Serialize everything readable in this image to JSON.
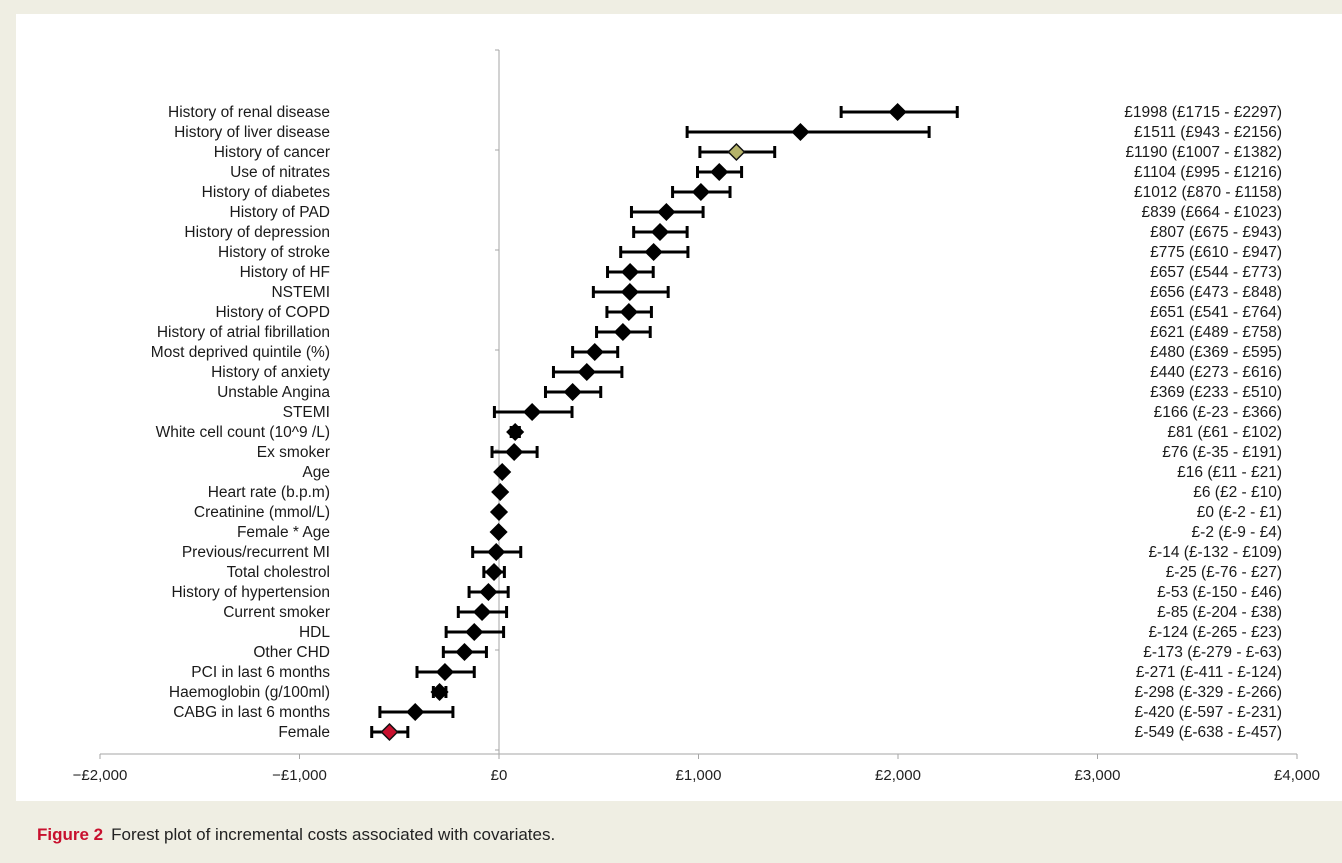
{
  "figure": {
    "label": "Figure 2",
    "caption": "Forest plot of incremental costs associated with covariates."
  },
  "colors": {
    "marker": "#000000",
    "highlight_fill": "#b5b36a",
    "female_fill": "#c8102e",
    "caption_label": "#c8102e",
    "background": "#efeee3"
  },
  "chart_data": {
    "type": "forest",
    "xlim": [
      -2000,
      4000
    ],
    "xticks": [
      -2000,
      -1000,
      0,
      1000,
      2000,
      3000,
      4000
    ],
    "xtick_labels": [
      "−£2,000",
      "−£1,000",
      "£0",
      "£1,000",
      "£2,000",
      "£3,000",
      "£4,000"
    ],
    "grid": false,
    "rows": [
      {
        "label": "History of renal disease",
        "est": 1998,
        "lo": 1715,
        "hi": 2297,
        "text": "£1998 (£1715 - £2297)"
      },
      {
        "label": "History of liver disease",
        "est": 1511,
        "lo": 943,
        "hi": 2156,
        "text": "£1511 (£943 - £2156)"
      },
      {
        "label": "History of cancer",
        "est": 1190,
        "lo": 1007,
        "hi": 1382,
        "text": "£1190 (£1007 - £1382)",
        "marker": "highlight"
      },
      {
        "label": "Use of nitrates",
        "est": 1104,
        "lo": 995,
        "hi": 1216,
        "text": "£1104 (£995 - £1216)"
      },
      {
        "label": "History of diabetes",
        "est": 1012,
        "lo": 870,
        "hi": 1158,
        "text": "£1012 (£870 - £1158)"
      },
      {
        "label": "History of PAD",
        "est": 839,
        "lo": 664,
        "hi": 1023,
        "text": "£839 (£664 - £1023)"
      },
      {
        "label": "History of depression",
        "est": 807,
        "lo": 675,
        "hi": 943,
        "text": "£807 (£675 - £943)"
      },
      {
        "label": "History of stroke",
        "est": 775,
        "lo": 610,
        "hi": 947,
        "text": "£775 (£610 - £947)"
      },
      {
        "label": "History of HF",
        "est": 657,
        "lo": 544,
        "hi": 773,
        "text": "£657 (£544 - £773)"
      },
      {
        "label": "NSTEMI",
        "est": 656,
        "lo": 473,
        "hi": 848,
        "text": "£656 (£473 - £848)"
      },
      {
        "label": "History of COPD",
        "est": 651,
        "lo": 541,
        "hi": 764,
        "text": "£651 (£541 - £764)"
      },
      {
        "label": "History of atrial fibrillation",
        "est": 621,
        "lo": 489,
        "hi": 758,
        "text": "£621 (£489 - £758)"
      },
      {
        "label": "Most deprived quintile (%)",
        "est": 480,
        "lo": 369,
        "hi": 595,
        "text": "£480 (£369 - £595)"
      },
      {
        "label": "History of anxiety",
        "est": 440,
        "lo": 273,
        "hi": 616,
        "text": "£440 (£273 - £616)"
      },
      {
        "label": "Unstable Angina",
        "est": 369,
        "lo": 233,
        "hi": 510,
        "text": "£369 (£233 - £510)"
      },
      {
        "label": "STEMI",
        "est": 166,
        "lo": -23,
        "hi": 366,
        "text": "£166 (£-23 - £366)"
      },
      {
        "label": "White cell count (10^9 /L)",
        "est": 81,
        "lo": 61,
        "hi": 102,
        "text": "£81 (£61 - £102)"
      },
      {
        "label": "Ex smoker",
        "est": 76,
        "lo": -35,
        "hi": 191,
        "text": "£76 (£-35 - £191)"
      },
      {
        "label": "Age",
        "est": 16,
        "lo": 11,
        "hi": 21,
        "text": "£16 (£11 - £21)"
      },
      {
        "label": "Heart rate (b.p.m)",
        "est": 6,
        "lo": 2,
        "hi": 10,
        "text": "£6 (£2 - £10)"
      },
      {
        "label": "Creatinine (mmol/L)",
        "est": 0,
        "lo": -2,
        "hi": 1,
        "text": "£0 (£-2 - £1)"
      },
      {
        "label": "Female * Age",
        "est": -2,
        "lo": -9,
        "hi": 4,
        "text": "£-2 (£-9 - £4)"
      },
      {
        "label": "Previous/recurrent MI",
        "est": -14,
        "lo": -132,
        "hi": 109,
        "text": "£-14 (£-132 - £109)"
      },
      {
        "label": "Total cholestrol",
        "est": -25,
        "lo": -76,
        "hi": 27,
        "text": "£-25 (£-76 - £27)"
      },
      {
        "label": "History of hypertension",
        "est": -53,
        "lo": -150,
        "hi": 46,
        "text": "£-53 (£-150 - £46)"
      },
      {
        "label": "Current smoker",
        "est": -85,
        "lo": -204,
        "hi": 38,
        "text": "£-85 (£-204 - £38)"
      },
      {
        "label": "HDL",
        "est": -124,
        "lo": -265,
        "hi": 23,
        "text": "£-124 (£-265 - £23)"
      },
      {
        "label": "Other CHD",
        "est": -173,
        "lo": -279,
        "hi": -63,
        "text": "£-173 (£-279 - £-63)"
      },
      {
        "label": "PCI in last 6 months",
        "est": -271,
        "lo": -411,
        "hi": -124,
        "text": "£-271 (£-411 - £-124)"
      },
      {
        "label": "Haemoglobin (g/100ml)",
        "est": -298,
        "lo": -329,
        "hi": -266,
        "text": "£-298 (£-329 - £-266)"
      },
      {
        "label": "CABG in last 6 months",
        "est": -420,
        "lo": -597,
        "hi": -231,
        "text": "£-420 (£-597 - £-231)"
      },
      {
        "label": "Female",
        "est": -549,
        "lo": -638,
        "hi": -457,
        "text": "£-549 (£-638 - £-457)",
        "marker": "female"
      }
    ]
  }
}
